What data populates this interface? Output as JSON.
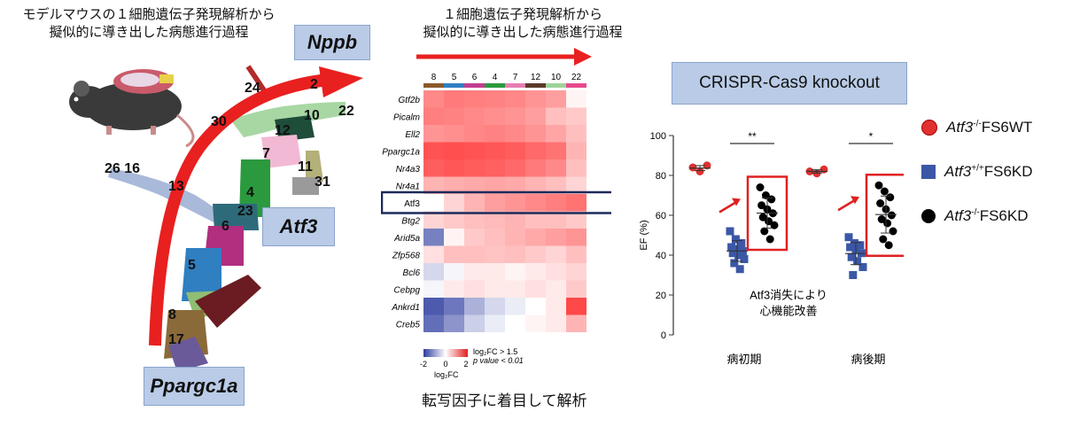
{
  "left_panel": {
    "caption_line1": "モデルマウスの１細胞遺伝子発現解析から",
    "caption_line2": "擬似的に導き出した病態進行過程",
    "gene_top": "Nppb",
    "gene_mid": "Atf3",
    "gene_bottom": "Ppargc1a",
    "cluster_labels": [
      "24",
      "2",
      "30",
      "12",
      "10",
      "22",
      "7",
      "26 16",
      "13",
      "11",
      "31",
      "4",
      "23",
      "6",
      "5",
      "8",
      "17"
    ]
  },
  "heatmap_panel": {
    "caption_line1": "１細胞遺伝子発現解析から",
    "caption_line2": "擬似的に導き出した病態進行過程",
    "columns": [
      "8",
      "5",
      "6",
      "4",
      "7",
      "12",
      "10",
      "22"
    ],
    "column_colors": [
      "#8b5a2b",
      "#2f7fc1",
      "#c23d8f",
      "#2b9a3e",
      "#e67fb4",
      "#5a3a2a",
      "#9fd39a",
      "#e64a8c"
    ],
    "rows": [
      "Gtf2b",
      "Picalm",
      "Ell2",
      "Ppargc1a",
      "Nr4a3",
      "Nr4a1",
      "Atf3",
      "Btg2",
      "Arid5a",
      "Zfp568",
      "Bcl6",
      "Cebpg",
      "Ankrd1",
      "Creb5"
    ],
    "highlight_row": "Atf3",
    "legend_ticks": [
      "-2",
      "0",
      "2"
    ],
    "legend_label": "log₂FC",
    "legend_note1": "log₂FC > 1.5",
    "legend_note2": "p value < 0.01",
    "bottom_caption": "転写因子に着目して解析",
    "values": [
      [
        0.55,
        0.62,
        0.6,
        0.58,
        0.56,
        0.5,
        0.45,
        0.05
      ],
      [
        0.6,
        0.58,
        0.55,
        0.52,
        0.5,
        0.45,
        0.3,
        0.25
      ],
      [
        0.5,
        0.52,
        0.56,
        0.58,
        0.55,
        0.5,
        0.42,
        0.3
      ],
      [
        0.8,
        0.82,
        0.8,
        0.78,
        0.76,
        0.7,
        0.65,
        0.35
      ],
      [
        0.75,
        0.78,
        0.76,
        0.74,
        0.7,
        0.62,
        0.55,
        0.3
      ],
      [
        0.35,
        0.38,
        0.4,
        0.42,
        0.4,
        0.35,
        0.3,
        0.2
      ],
      [
        0.0,
        0.2,
        0.35,
        0.45,
        0.5,
        0.55,
        0.6,
        0.65
      ],
      [
        0.2,
        0.25,
        0.3,
        0.32,
        0.35,
        0.3,
        0.3,
        0.25
      ],
      [
        -0.65,
        0.05,
        0.25,
        0.3,
        0.35,
        0.4,
        0.45,
        0.5
      ],
      [
        0.15,
        0.3,
        0.3,
        0.28,
        0.3,
        0.25,
        0.2,
        0.3
      ],
      [
        -0.2,
        -0.05,
        0.1,
        0.1,
        0.05,
        0.1,
        0.15,
        0.2
      ],
      [
        -0.05,
        0.1,
        0.15,
        0.1,
        0.1,
        0.15,
        0.1,
        0.25
      ],
      [
        -0.85,
        -0.7,
        -0.4,
        -0.2,
        -0.1,
        0.0,
        0.1,
        0.85
      ],
      [
        -0.75,
        -0.55,
        -0.25,
        -0.1,
        0.0,
        0.05,
        0.1,
        0.35
      ]
    ]
  },
  "crispr_panel": {
    "title": "CRISPR-Cas9 knockout",
    "chart_data": {
      "type": "scatter",
      "ylabel": "EF (%)",
      "ylim": [
        0,
        100
      ],
      "yticks": [
        "0",
        "20",
        "40",
        "60",
        "80",
        "100"
      ],
      "categories": [
        "病初期",
        "病後期"
      ],
      "significance": [
        "**",
        "*"
      ],
      "annotation_line1": "Atf3消失により",
      "annotation_line2": "心機能改善",
      "series": [
        {
          "name": "Atf3-/- FS6WT",
          "color": "#e03030",
          "marker": "circle",
          "values": [
            [
              84,
              82,
              85
            ],
            [
              82,
              81,
              83
            ]
          ]
        },
        {
          "name": "Atf3+/+ FS6KD",
          "color": "#3b57a6",
          "marker": "square",
          "values": [
            [
              52,
              48,
              46,
              44,
              43,
              42,
              41,
              40,
              38,
              36,
              33
            ],
            [
              49,
              46,
              45,
              44,
              43,
              41,
              39,
              37,
              34,
              30
            ]
          ]
        },
        {
          "name": "Atf3-/- FS6KD",
          "color": "#000000",
          "marker": "circle",
          "values": [
            [
              74,
              70,
              68,
              65,
              63,
              61,
              59,
              57,
              55,
              52,
              48
            ],
            [
              75,
              72,
              69,
              66,
              63,
              60,
              58,
              56,
              52,
              48,
              45
            ]
          ]
        }
      ]
    },
    "legend": [
      {
        "gene": "Atf3",
        "sup": "-/-",
        "suffix": "FS6WT",
        "color": "#e03030",
        "marker": "circle"
      },
      {
        "gene": "Atf3",
        "sup": "+/+",
        "suffix": "FS6KD",
        "color": "#3b57a6",
        "marker": "square"
      },
      {
        "gene": "Atf3",
        "sup": "-/-",
        "suffix": "FS6KD",
        "color": "#000000",
        "marker": "circle"
      }
    ]
  }
}
